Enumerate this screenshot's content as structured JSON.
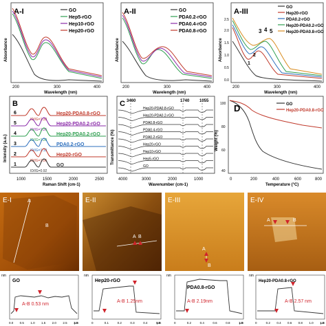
{
  "panels": {
    "a1": {
      "label": "A-I",
      "xlabel": "Wavelength (nm)",
      "ylabel": "Absorbance",
      "xticks": [
        "200",
        "300",
        "400"
      ],
      "legend": [
        {
          "name": "GO",
          "color": "#333333"
        },
        {
          "name": "Hep5-rGO",
          "color": "#2e9e4f"
        },
        {
          "name": "Hep10-rGO",
          "color": "#8a2aa8"
        },
        {
          "name": "Hep20-rGO",
          "color": "#c0392b"
        }
      ]
    },
    "a2": {
      "label": "A-II",
      "xlabel": "Wavelength (nm)",
      "ylabel": "Absorbance",
      "xticks": [
        "200",
        "300",
        "400"
      ],
      "legend": [
        {
          "name": "GO",
          "color": "#333333"
        },
        {
          "name": "PDA0.2-rGO",
          "color": "#2e9e4f"
        },
        {
          "name": "PDA0.4-rGO",
          "color": "#8a2aa8"
        },
        {
          "name": "PDA0.8-rGO",
          "color": "#c0392b"
        }
      ]
    },
    "a3": {
      "label": "A-III",
      "xlabel": "Wavelength (nm)",
      "ylabel": "Absorbance",
      "yticks": [
        "0.0",
        "0.5",
        "1.0",
        "1.5",
        "2.0",
        "2.5"
      ],
      "xticks": [
        "200",
        "300",
        "400"
      ],
      "peak_labels": [
        "1",
        "2",
        "3",
        "4",
        "5"
      ],
      "legend": [
        {
          "name": "GO",
          "color": "#333333"
        },
        {
          "name": "Hep20-rGO",
          "color": "#c0392b"
        },
        {
          "name": "PDA0.2-rGO",
          "color": "#2e6fbd"
        },
        {
          "name": "Hep20-PDA0.2-rGO",
          "color": "#2e9e4f"
        },
        {
          "name": "Hep20-PDA0.8-rGO",
          "color": "#d98c1f"
        }
      ]
    },
    "b": {
      "label": "B",
      "xlabel": "Raman Shift (cm-1)",
      "ylabel": "Intensity (a.u.)",
      "xticks": [
        "1000",
        "1500",
        "2000",
        "2500"
      ],
      "rows": [
        {
          "num": "6",
          "ratio": "ID/IG=1.33",
          "name": "Hep20-PDA0.8-rGO",
          "color": "#c0392b"
        },
        {
          "num": "5",
          "ratio": "ID/IG=1.26",
          "name": "Hep20-PDA0.2-rGO",
          "color": "#8a2aa8"
        },
        {
          "num": "4",
          "ratio": "ID/IG=1.20",
          "name": "Hep20-PDA0.2-rGO",
          "color": "#2e9e4f"
        },
        {
          "num": "3",
          "ratio": "ID/IG=1.13",
          "name": "PDA0.2-rGO",
          "color": "#2e6fbd"
        },
        {
          "num": "2",
          "ratio": "ID/IG=1.06",
          "name": "Hep20-rGO",
          "color": "#c0392b"
        },
        {
          "num": "1",
          "ratio": "ID/IG=0.92",
          "name": "GO",
          "color": "#333333"
        }
      ]
    },
    "c": {
      "label": "C",
      "xlabel": "Wavenumber (cm-1)",
      "ylabel": "Transmittance (%)",
      "xticks": [
        "4000",
        "3000",
        "2000",
        "1000"
      ],
      "bands": [
        "3460",
        "1740",
        "1055"
      ],
      "rows": [
        "Hep20-PDA0.8-rGO",
        "Hep20-PDA0.2-rGO",
        "PDA0.8-rGO",
        "PDA0.4-rGO",
        "PDA0.2-rGO",
        "Hep20-rGO",
        "Hep10-rGO",
        "Hep5-rGO",
        "GO"
      ]
    },
    "d": {
      "label": "D",
      "xlabel": "Temperature (°C)",
      "ylabel": "Weight (%)",
      "yticks": [
        "100",
        "80",
        "60",
        "40"
      ],
      "xticks": [
        "0",
        "200",
        "400",
        "600",
        "800"
      ],
      "legend": [
        {
          "name": "GO",
          "color": "#333333"
        },
        {
          "name": "Hep20-PDA0.8-rGO",
          "color": "#c0392b"
        }
      ]
    },
    "e1": {
      "label": "E-I",
      "pA": "A",
      "pB": "B",
      "profile_name": "GO",
      "dist": "A-B 0.53 nm",
      "xticks": [
        "0.0",
        "0.5",
        "1.0",
        "1.5",
        "2.0",
        "2.5",
        "3.0"
      ],
      "unit": "μm",
      "yunit": "nm"
    },
    "e2": {
      "label": "E-II",
      "pA": "A",
      "pB": "B",
      "profile_name": "Hep20-rGO",
      "dist": "A-B 1.25nm",
      "xticks": [
        "0",
        "0.1",
        "0.2",
        "0.3",
        "0.4",
        "0.5"
      ],
      "unit": "μm",
      "yunit": "nm"
    },
    "e3": {
      "label": "E-III",
      "pA": "A",
      "pB": "B",
      "profile_name": "PDA0.8-rGO",
      "dist": "A-B 2.19nm",
      "xticks": [
        "0",
        "0.2",
        "0.4",
        "0.6",
        "0.8",
        "1.0"
      ],
      "unit": "μm",
      "yunit": "nm"
    },
    "e4": {
      "label": "E-IV",
      "pA": "A",
      "pB": "B",
      "profile_name": "Hep20-PDA0.8-rGO",
      "dist": "A-B 2.57 nm",
      "xticks": [
        "0",
        "0.2",
        "0.4",
        "0.6",
        "0.8",
        "1.0",
        "1.2"
      ],
      "unit": "μm",
      "yunit": "nm"
    }
  }
}
